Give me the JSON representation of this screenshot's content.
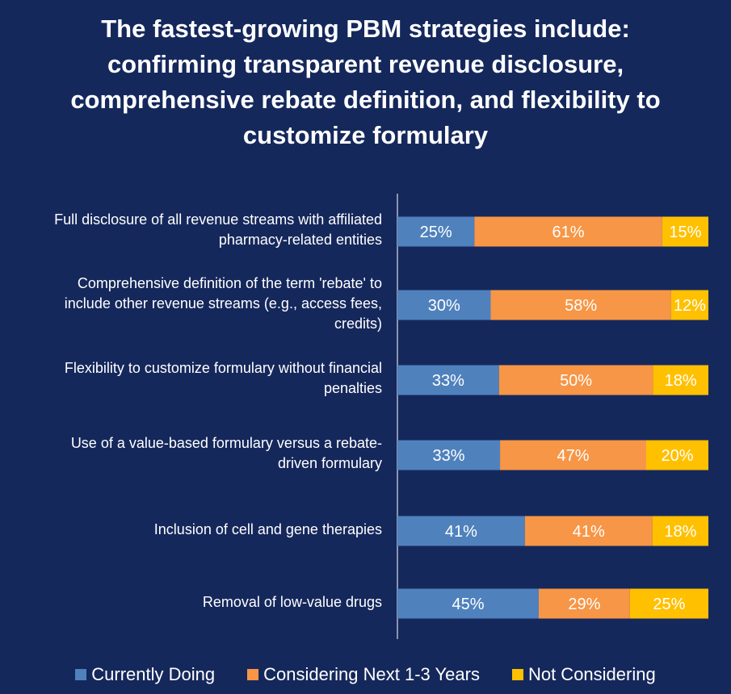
{
  "chart_data": {
    "type": "bar",
    "orientation": "horizontal",
    "stacked": true,
    "title_lines": [
      "The fastest-growing PBM strategies include:",
      "confirming transparent revenue disclosure,",
      "comprehensive rebate definition, and flexibility to",
      "customize formulary"
    ],
    "categories": [
      [
        "Full disclosure of all revenue streams with affiliated",
        "pharmacy-related entities"
      ],
      [
        "Comprehensive definition of the term 'rebate' to",
        "include other revenue streams (e.g., access fees,",
        "credits)"
      ],
      [
        "Flexibility to customize formulary without financial",
        "penalties"
      ],
      [
        "Use of a value-based formulary versus a rebate-",
        "driven formulary"
      ],
      [
        "Inclusion of cell and gene therapies"
      ],
      [
        "Removal of low-value drugs"
      ]
    ],
    "series": [
      {
        "name": "Currently Doing",
        "color": "#4f81bd",
        "values": [
          25,
          30,
          33,
          33,
          41,
          45
        ],
        "labels": [
          "25%",
          "30%",
          "33%",
          "33%",
          "41%",
          "45%"
        ]
      },
      {
        "name": "Considering Next 1-3 Years",
        "color": "#f79646",
        "values": [
          61,
          58,
          50,
          47,
          41,
          29
        ],
        "labels": [
          "61%",
          "58%",
          "50%",
          "47%",
          "41%",
          "29%"
        ]
      },
      {
        "name": "Not Considering",
        "color": "#ffc000",
        "values": [
          15,
          12,
          18,
          20,
          18,
          25
        ],
        "labels": [
          "15%",
          "12%",
          "18%",
          "20%",
          "18%",
          "25%"
        ]
      }
    ],
    "legend_position": "bottom",
    "axis_visible": false,
    "grid": false
  }
}
